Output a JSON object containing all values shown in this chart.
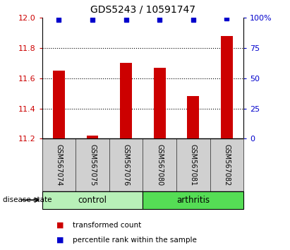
{
  "title": "GDS5243 / 10591747",
  "samples": [
    "GSM567074",
    "GSM567075",
    "GSM567076",
    "GSM567080",
    "GSM567081",
    "GSM567082"
  ],
  "red_values": [
    11.65,
    11.22,
    11.7,
    11.67,
    11.48,
    11.88
  ],
  "blue_values": [
    98,
    98,
    98,
    98,
    98,
    99
  ],
  "ylim_left": [
    11.2,
    12.0
  ],
  "ylim_right": [
    0,
    100
  ],
  "left_ticks": [
    11.2,
    11.4,
    11.6,
    11.8,
    12.0
  ],
  "right_ticks": [
    0,
    25,
    50,
    75,
    100
  ],
  "right_tick_labels": [
    "0",
    "25",
    "50",
    "75",
    "100%"
  ],
  "bar_color": "#cc0000",
  "dot_color": "#0000cc",
  "group1_label": "control",
  "group2_label": "arthritis",
  "group1_color": "#b8f0b8",
  "group2_color": "#55dd55",
  "disease_label": "disease state",
  "legend1_label": "transformed count",
  "legend2_label": "percentile rank within the sample",
  "bar_width": 0.35,
  "grid_color": "black"
}
